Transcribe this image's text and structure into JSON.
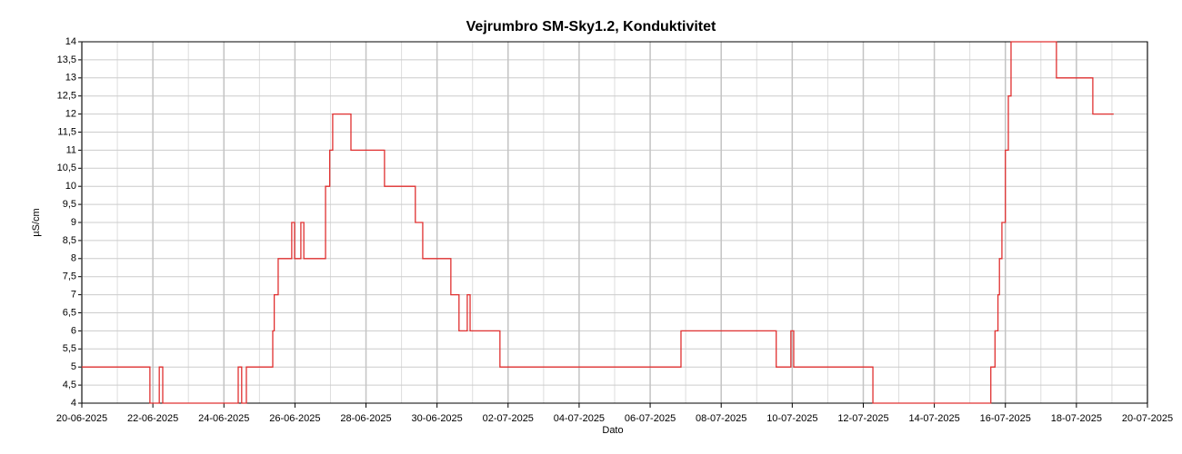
{
  "chart_data": {
    "type": "line",
    "title": "Vejrumbro SM-Sky1.2, Konduktivitet",
    "xlabel": "Dato",
    "ylabel": "µS/cm",
    "step": "post",
    "grid": true,
    "xlim": [
      "2025-06-20",
      "2025-07-20"
    ],
    "xticks": [
      {
        "value": "2025-06-20",
        "label": "20-06-2025"
      },
      {
        "value": "2025-06-22",
        "label": "22-06-2025"
      },
      {
        "value": "2025-06-24",
        "label": "24-06-2025"
      },
      {
        "value": "2025-06-26",
        "label": "26-06-2025"
      },
      {
        "value": "2025-06-28",
        "label": "28-06-2025"
      },
      {
        "value": "2025-06-30",
        "label": "30-06-2025"
      },
      {
        "value": "2025-07-02",
        "label": "02-07-2025"
      },
      {
        "value": "2025-07-04",
        "label": "04-07-2025"
      },
      {
        "value": "2025-07-06",
        "label": "06-07-2025"
      },
      {
        "value": "2025-07-08",
        "label": "08-07-2025"
      },
      {
        "value": "2025-07-10",
        "label": "10-07-2025"
      },
      {
        "value": "2025-07-12",
        "label": "12-07-2025"
      },
      {
        "value": "2025-07-14",
        "label": "14-07-2025"
      },
      {
        "value": "2025-07-16",
        "label": "16-07-2025"
      },
      {
        "value": "2025-07-18",
        "label": "18-07-2025"
      },
      {
        "value": "2025-07-20",
        "label": "20-07-2025"
      }
    ],
    "ylim": [
      4,
      14
    ],
    "yticks": [
      4,
      {
        "value": 4.5,
        "label": "4,5"
      },
      5,
      {
        "value": 5.5,
        "label": "5,5"
      },
      6,
      {
        "value": 6.5,
        "label": "6,5"
      },
      7,
      {
        "value": 7.5,
        "label": "7,5"
      },
      8,
      {
        "value": 8.5,
        "label": "8,5"
      },
      9,
      {
        "value": 9.5,
        "label": "9,5"
      },
      10,
      {
        "value": 10.5,
        "label": "10,5"
      },
      11,
      {
        "value": 11.5,
        "label": "11,5"
      },
      12,
      {
        "value": 12.5,
        "label": "12,5"
      },
      13,
      {
        "value": 13.5,
        "label": "13,5"
      },
      14
    ],
    "x": [
      "2025-06-20T00:00",
      "2025-06-21T22:00",
      "2025-06-22T04:20",
      "2025-06-22T06:40",
      "2025-06-24T09:40",
      "2025-06-24T12:00",
      "2025-06-24T15:10",
      "2025-06-25T09:00",
      "2025-06-25T10:00",
      "2025-06-25T12:40",
      "2025-06-25T21:50",
      "2025-06-25T23:45",
      "2025-06-26T04:00",
      "2025-06-26T06:00",
      "2025-06-26T20:40",
      "2025-06-26T23:30",
      "2025-06-27T01:30",
      "2025-06-27T13:50",
      "2025-06-28T12:30",
      "2025-06-29T09:20",
      "2025-06-29T14:20",
      "2025-06-30T09:20",
      "2025-06-30T14:50",
      "2025-06-30T20:25",
      "2025-06-30T22:20",
      "2025-07-01T18:30",
      "2025-07-06T20:50",
      "2025-07-09T13:10",
      "2025-07-09T23:05",
      "2025-07-10T01:00",
      "2025-07-12T06:30",
      "2025-07-15T14:10",
      "2025-07-15T17:00",
      "2025-07-15T19:00",
      "2025-07-15T20:00",
      "2025-07-15T21:40",
      "2025-07-16T00:00",
      "2025-07-16T02:00",
      "2025-07-16T03:50",
      "2025-07-17T10:30",
      "2025-07-18T11:05",
      "2025-07-19T01:10"
    ],
    "series": [
      {
        "name": "Konduktivitet",
        "color": "#e03030",
        "values": [
          5,
          4,
          5,
          4,
          5,
          4,
          5,
          6,
          7,
          8,
          9,
          8,
          9,
          8,
          10,
          11,
          12,
          11,
          10,
          9,
          8,
          7,
          6,
          7,
          6,
          5,
          6,
          5,
          6,
          5,
          4,
          5,
          6,
          7,
          8,
          9,
          11,
          12.5,
          14,
          13,
          12,
          12
        ]
      }
    ]
  }
}
